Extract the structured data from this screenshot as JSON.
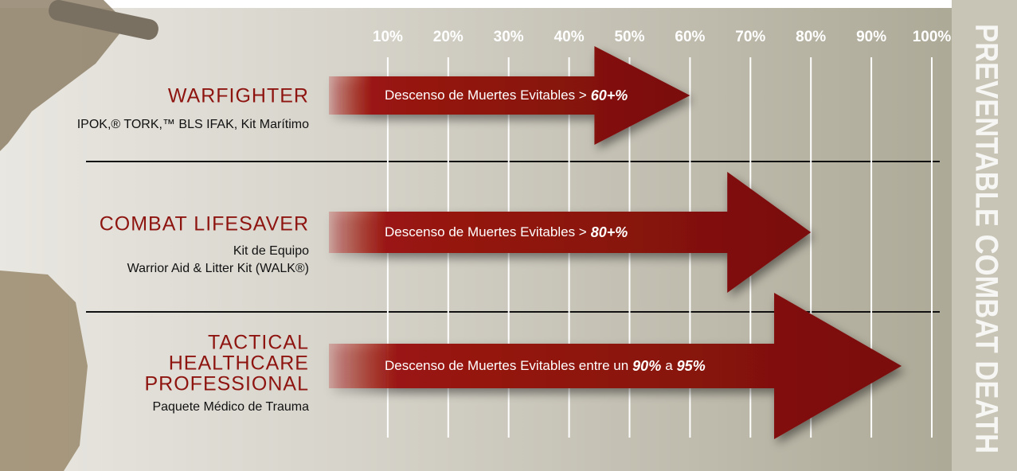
{
  "chart_data": {
    "type": "arrow-bar",
    "side_label": "PREVENTABLE COMBAT DEATH",
    "xlim": [
      0,
      100
    ],
    "xticks": [
      {
        "value": 10,
        "label": "10%"
      },
      {
        "value": 20,
        "label": "20%"
      },
      {
        "value": 30,
        "label": "30%"
      },
      {
        "value": 40,
        "label": "40%"
      },
      {
        "value": 50,
        "label": "50%"
      },
      {
        "value": 60,
        "label": "60%"
      },
      {
        "value": 70,
        "label": "70%"
      },
      {
        "value": 80,
        "label": "80%"
      },
      {
        "value": 90,
        "label": "90%"
      },
      {
        "value": 100,
        "label": "100%"
      }
    ],
    "grid": true,
    "color": "#8e1410",
    "rows": [
      {
        "title_lines": [
          "WARFIGHTER"
        ],
        "subtitle_lines": [
          "IPOK,® TORK,™ BLS IFAK, Kit Marítimo"
        ],
        "caption": {
          "prefix": "Descenso de Muertes Evitables >"
        }
      },
      {
        "title_lines": [
          "COMBAT LIFESAVER"
        ],
        "subtitle_lines": [
          "Kit de Equipo",
          "Warrior Aid & Litter Kit (WALK®)"
        ],
        "caption": {
          "prefix": "Descenso de Muertes Evitables >"
        }
      },
      {
        "title_lines": [
          "TACTICAL",
          "HEALTHCARE",
          "PROFESSIONAL"
        ],
        "subtitle_lines": [
          "Paquete Médico de Trauma"
        ],
        "caption": {
          "prefix": "Descenso de Muertes Evitables entre un",
          "low_label": "90%",
          "middle": "a"
        }
      }
    ],
    "values": [
      60,
      80,
      95
    ],
    "value_labels": [
      "60+%",
      "80+%",
      "95%"
    ]
  }
}
